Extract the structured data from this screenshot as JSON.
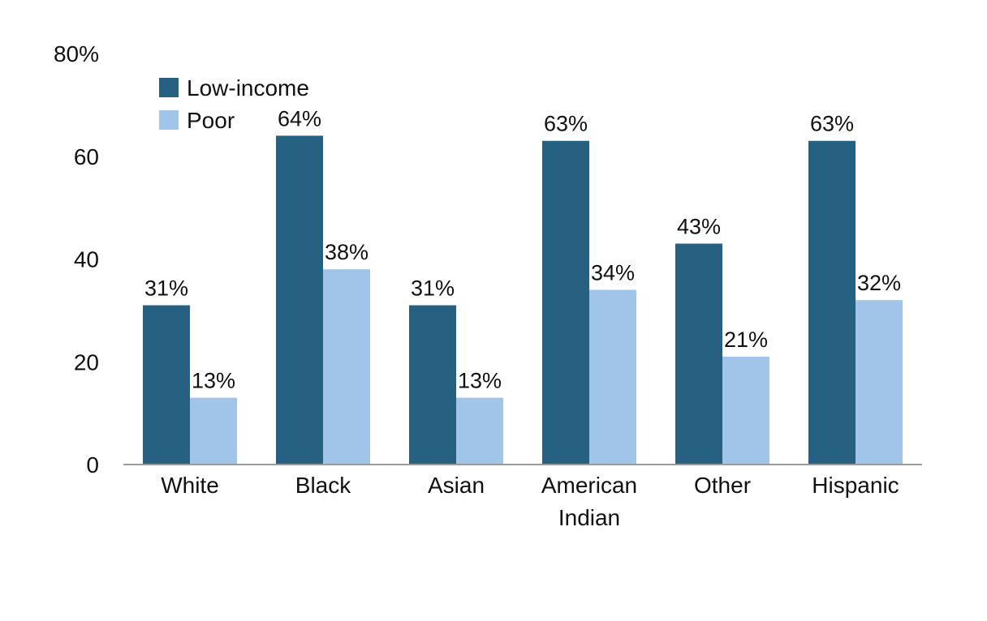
{
  "chart_data": {
    "type": "bar",
    "categories": [
      "White",
      "Black",
      "Asian",
      "American Indian",
      "Other",
      "Hispanic"
    ],
    "category_lines": [
      [
        "White"
      ],
      [
        "Black"
      ],
      [
        "Asian"
      ],
      [
        "American",
        "Indian"
      ],
      [
        "Other"
      ],
      [
        "Hispanic"
      ]
    ],
    "series": [
      {
        "name": "Low-income",
        "color": "#266182",
        "values": [
          31,
          64,
          31,
          63,
          43,
          63
        ],
        "labels": [
          "31%",
          "64%",
          "31%",
          "63%",
          "43%",
          "63%"
        ]
      },
      {
        "name": "Poor",
        "color": "#A0C5E8",
        "values": [
          13,
          38,
          13,
          34,
          21,
          32
        ],
        "labels": [
          "13%",
          "38%",
          "13%",
          "34%",
          "21%",
          "32%"
        ]
      }
    ],
    "yticks": [
      "0",
      "20",
      "40",
      "60",
      "80%"
    ],
    "ytick_values": [
      0,
      20,
      40,
      60,
      80
    ],
    "ylim": [
      0,
      80
    ],
    "grid": false,
    "legend": "top-left",
    "title": "",
    "xlabel": "",
    "ylabel": ""
  }
}
